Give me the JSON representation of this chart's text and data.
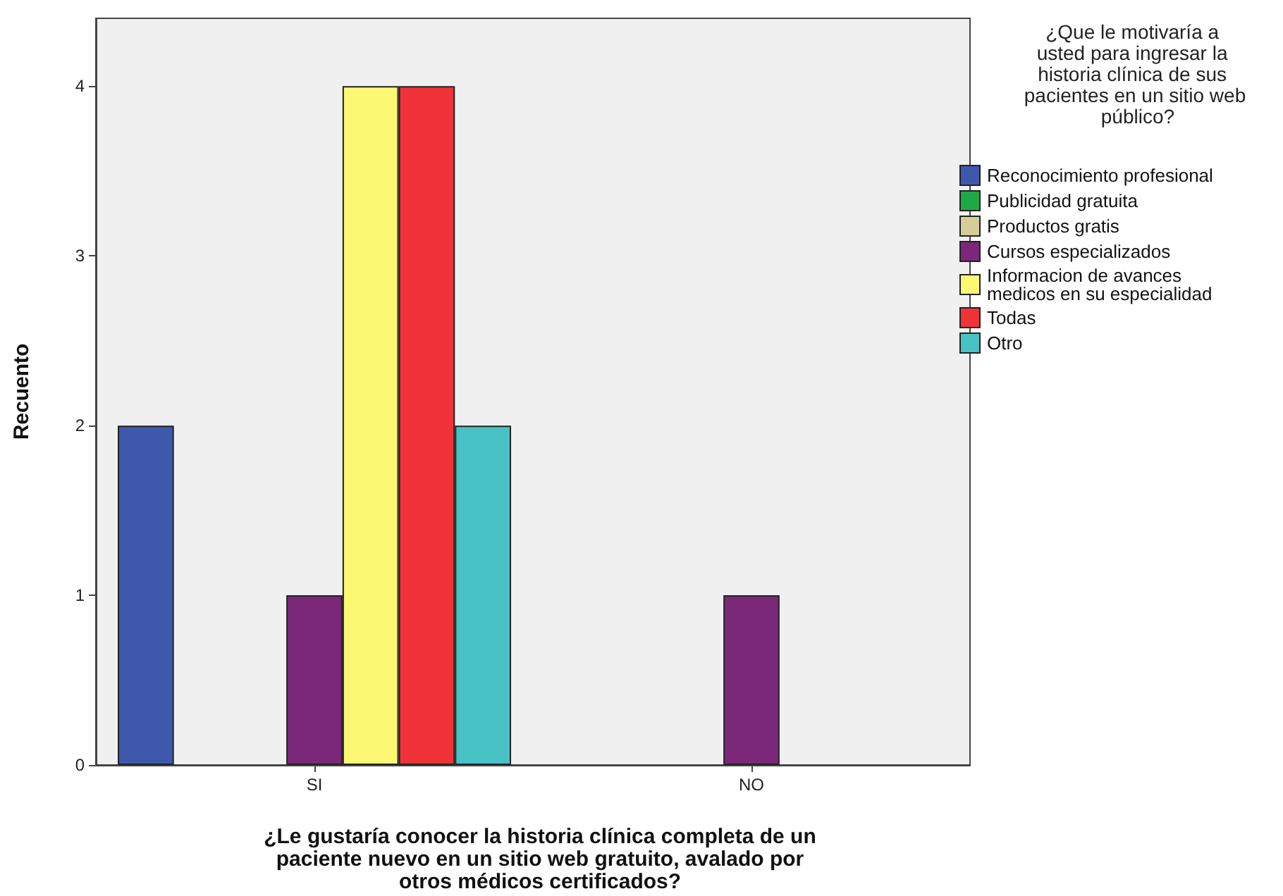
{
  "chart_data": {
    "type": "bar",
    "xlabel": "¿Le gustaría conocer la historia clínica completa de un paciente nuevo en un sitio web gratuito, avalado por otros médicos certificados?",
    "ylabel": "Recuento",
    "legend_title": "¿Que le motivaría a usted para ingresar la historia clínica de sus pacientes en un sitio web público?",
    "categories": [
      "SI",
      "NO"
    ],
    "series": [
      {
        "name": "Reconocimiento profesional",
        "color": "#3e58ac",
        "values": [
          2,
          null
        ]
      },
      {
        "name": "Publicidad gratuita",
        "color": "#1fa946",
        "values": [
          null,
          null
        ]
      },
      {
        "name": "Productos gratis",
        "color": "#d3ce97",
        "values": [
          null,
          null
        ]
      },
      {
        "name": "Cursos especializados",
        "color": "#7b287b",
        "values": [
          1,
          1
        ]
      },
      {
        "name": "Informacion de avances medicos en su especialidad",
        "color": "#fbf873",
        "values": [
          4,
          null
        ]
      },
      {
        "name": "Todas",
        "color": "#ef3338",
        "values": [
          4,
          null
        ]
      },
      {
        "name": "Otro",
        "color": "#48c2c5",
        "values": [
          2,
          null
        ]
      }
    ],
    "ylim": [
      0,
      4.4
    ],
    "yticks": [
      0,
      1,
      2,
      3,
      4
    ],
    "grid": false,
    "legend": "right"
  }
}
